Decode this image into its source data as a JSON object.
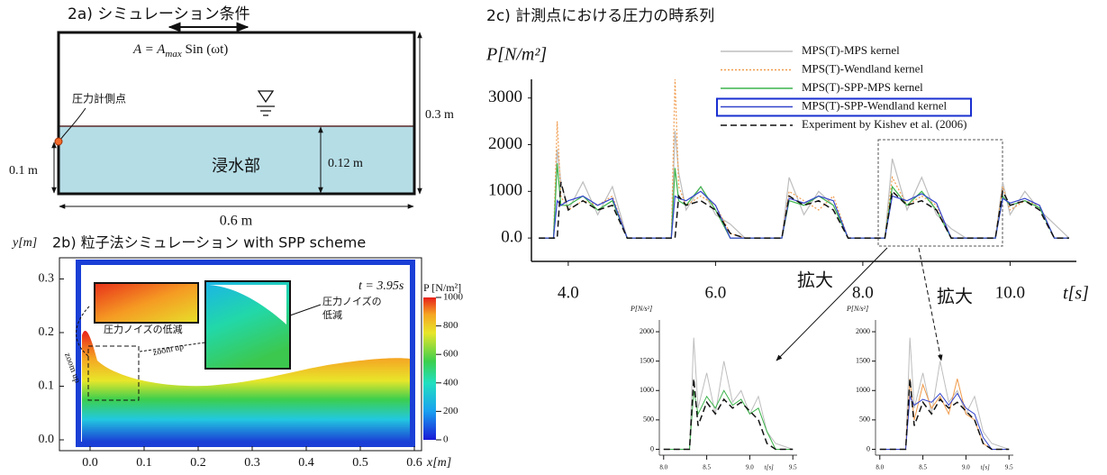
{
  "panel_a": {
    "title": "2a) シミュレーション条件",
    "formula": [
      "A = A",
      "max",
      " Sin (ωt)"
    ],
    "gauge": "圧力計側点",
    "height": "0.3 m",
    "water_depth": "0.12 m",
    "gauge_height": "0.1 m",
    "water": "浸水部",
    "width": "0.6 m"
  },
  "panel_b": {
    "title": "2b) 粒子法シミュレーション with SPP scheme",
    "y_label": "y[m]",
    "x_label": "x[m]",
    "yticks": [
      "0.0",
      "0.1",
      "0.2",
      "0.3"
    ],
    "xticks": [
      "0.0",
      "0.1",
      "0.2",
      "0.3",
      "0.4",
      "0.5",
      "0.6"
    ],
    "time": "t = 3.95s",
    "colorbar_label": "P [N/m²]",
    "colorbar_ticks": [
      "0",
      "200",
      "400",
      "600",
      "800",
      "1000"
    ],
    "note_1": "圧力ノイズの低減",
    "note_2": [
      "圧力ノイズの",
      "低減"
    ],
    "zoom": [
      "zoom up",
      "zoom up"
    ]
  },
  "chart_data": [
    {
      "type": "line",
      "title": "2c) 計測点における圧力の時系列",
      "y_label": "P[N/m²]",
      "x_label": "t[s]",
      "annotations": [
        "拡大",
        "拡大"
      ],
      "legend": "top",
      "x": [
        3.6,
        3.8,
        3.85,
        3.9,
        4.0,
        4.2,
        4.4,
        4.6,
        4.8,
        5.0,
        5.2,
        5.4,
        5.45,
        5.5,
        5.6,
        5.8,
        6.0,
        6.2,
        6.4,
        6.6,
        6.8,
        6.9,
        7.0,
        7.2,
        7.4,
        7.6,
        7.8,
        8.0,
        8.2,
        8.3,
        8.4,
        8.6,
        8.8,
        9.0,
        9.2,
        9.4,
        9.6,
        9.8,
        9.9,
        10.0,
        10.2,
        10.4,
        10.6,
        10.8
      ],
      "xlim": [
        3.5,
        10.9
      ],
      "ylim": [
        -500,
        3400
      ],
      "xticks": [
        {
          "value": 4,
          "label": "4.0"
        },
        {
          "value": 6,
          "label": "6.0"
        },
        {
          "value": 8,
          "label": "8.0"
        },
        {
          "value": 10,
          "label": "10.0"
        }
      ],
      "yticks": [
        {
          "value": 0,
          "label": "0.0"
        },
        1000,
        2000,
        3000
      ],
      "series": [
        {
          "name": "MPS(T)-MPS kernel",
          "color": "#bdbdbd",
          "style": "solid",
          "values": [
            0,
            0,
            1900,
            1200,
            600,
            1200,
            500,
            1100,
            0,
            0,
            0,
            0,
            2300,
            1400,
            600,
            1100,
            500,
            300,
            0,
            0,
            0,
            0,
            1300,
            500,
            1000,
            700,
            0,
            0,
            0,
            0,
            1700,
            600,
            1300,
            500,
            200,
            0,
            0,
            0,
            1200,
            500,
            1000,
            600,
            300,
            0
          ]
        },
        {
          "name": "MPS(T)-Wendland kernel",
          "color": "#f09a4a",
          "style": "dotted",
          "values": [
            0,
            0,
            2500,
            900,
            600,
            800,
            700,
            900,
            0,
            0,
            0,
            0,
            3400,
            1100,
            700,
            900,
            700,
            100,
            0,
            0,
            0,
            0,
            1000,
            800,
            600,
            900,
            0,
            0,
            0,
            0,
            1300,
            700,
            900,
            700,
            0,
            0,
            0,
            0,
            1100,
            600,
            800,
            700,
            0,
            0
          ]
        },
        {
          "name": "MPS(T)-SPP-MPS kernel",
          "color": "#3cb44b",
          "style": "solid",
          "values": [
            0,
            0,
            1600,
            700,
            700,
            900,
            600,
            800,
            0,
            0,
            0,
            0,
            1500,
            800,
            700,
            1100,
            600,
            0,
            0,
            0,
            0,
            0,
            800,
            700,
            900,
            700,
            0,
            0,
            0,
            0,
            1100,
            700,
            1000,
            600,
            0,
            0,
            0,
            0,
            900,
            700,
            800,
            650,
            0,
            0
          ]
        },
        {
          "name": "MPS(T)-SPP-Wendland kernel",
          "color": "#3344cc",
          "style": "solid",
          "highlighted": true,
          "values": [
            0,
            0,
            800,
            700,
            800,
            900,
            700,
            850,
            0,
            0,
            0,
            0,
            900,
            850,
            800,
            1000,
            700,
            0,
            0,
            0,
            0,
            0,
            850,
            750,
            900,
            800,
            0,
            0,
            0,
            0,
            900,
            800,
            950,
            750,
            0,
            0,
            0,
            0,
            850,
            750,
            850,
            700,
            0,
            0
          ]
        },
        {
          "name": "Experiment by Kishev et al. (2006)",
          "color": "#111111",
          "style": "dashed",
          "values": [
            0,
            0,
            0,
            1200,
            600,
            800,
            600,
            700,
            0,
            0,
            0,
            0,
            0,
            900,
            700,
            800,
            600,
            100,
            0,
            0,
            0,
            0,
            900,
            700,
            800,
            600,
            0,
            0,
            0,
            0,
            1000,
            700,
            800,
            600,
            0,
            0,
            0,
            0,
            1000,
            700,
            800,
            600,
            0,
            0
          ]
        }
      ]
    },
    {
      "type": "line",
      "y_label": "P[N/s²]",
      "x_label": "t[s]",
      "x": [
        8.0,
        8.2,
        8.3,
        8.35,
        8.4,
        8.5,
        8.6,
        8.7,
        8.8,
        8.9,
        9.0,
        9.1,
        9.2,
        9.3,
        9.5
      ],
      "xlim": [
        7.95,
        9.55
      ],
      "ylim": [
        -100,
        2200
      ],
      "xticks": [
        {
          "value": 8,
          "label": "8.0"
        },
        8.5,
        {
          "value": 9,
          "label": "9.0"
        },
        9.5
      ],
      "yticks": [
        0,
        500,
        1000,
        1500,
        2000
      ],
      "series": [
        {
          "color": "#bdbdbd",
          "style": "solid",
          "values": [
            0,
            0,
            0,
            1900,
            700,
            1300,
            600,
            1500,
            800,
            1000,
            600,
            900,
            300,
            100,
            0
          ]
        },
        {
          "color": "#3cb44b",
          "style": "solid",
          "values": [
            0,
            0,
            0,
            1000,
            600,
            900,
            700,
            1000,
            750,
            850,
            600,
            700,
            300,
            0,
            0
          ]
        },
        {
          "color": "#111111",
          "style": "dashed",
          "values": [
            0,
            0,
            0,
            1200,
            400,
            800,
            600,
            850,
            700,
            800,
            650,
            500,
            100,
            0,
            0
          ]
        }
      ]
    },
    {
      "type": "line",
      "y_label": "P[N/s²]",
      "x_label": "t[s]",
      "x": [
        8.0,
        8.2,
        8.3,
        8.35,
        8.4,
        8.5,
        8.6,
        8.7,
        8.8,
        8.9,
        9.0,
        9.1,
        9.2,
        9.3,
        9.5
      ],
      "xlim": [
        7.95,
        9.55
      ],
      "ylim": [
        -100,
        2200
      ],
      "xticks": [
        {
          "value": 8,
          "label": "8.0"
        },
        8.5,
        {
          "value": 9,
          "label": "9.0"
        },
        9.5
      ],
      "yticks": [
        0,
        500,
        1000,
        1500,
        2000
      ],
      "series": [
        {
          "color": "#bdbdbd",
          "style": "solid",
          "values": [
            0,
            0,
            0,
            1900,
            700,
            1300,
            600,
            1500,
            800,
            1000,
            600,
            900,
            300,
            100,
            0
          ]
        },
        {
          "color": "#f09a4a",
          "style": "solid",
          "values": [
            0,
            0,
            0,
            1200,
            500,
            1100,
            700,
            900,
            600,
            1200,
            600,
            500,
            100,
            0,
            0
          ]
        },
        {
          "color": "#3344cc",
          "style": "solid",
          "values": [
            0,
            0,
            0,
            900,
            750,
            850,
            800,
            950,
            750,
            950,
            700,
            600,
            200,
            0,
            0
          ]
        },
        {
          "color": "#111111",
          "style": "dashed",
          "values": [
            0,
            0,
            0,
            1200,
            400,
            800,
            600,
            850,
            700,
            800,
            650,
            500,
            100,
            0,
            0
          ]
        }
      ]
    }
  ]
}
